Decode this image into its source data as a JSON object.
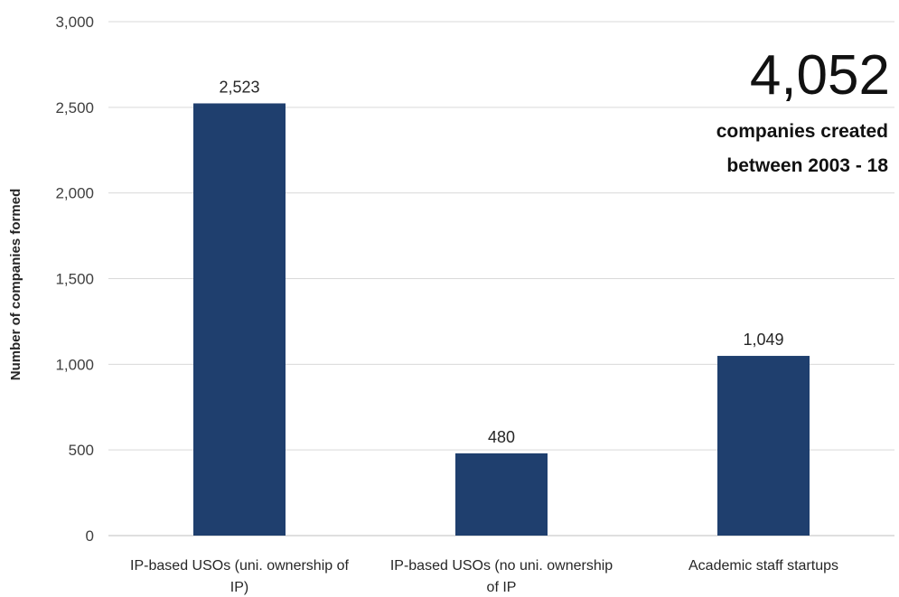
{
  "chart_data": {
    "type": "bar",
    "categories": [
      [
        "IP-based USOs (uni. ownership of",
        "IP)"
      ],
      [
        "IP-based USOs (no uni. ownership",
        "of IP"
      ],
      [
        "Academic staff startups"
      ]
    ],
    "values": [
      2523,
      480,
      1049
    ],
    "data_labels": [
      "2,523",
      "480",
      "1,049"
    ],
    "title": "",
    "xlabel": "",
    "ylabel": "Number of companies formed",
    "ylim": [
      0,
      3000
    ],
    "yticks": [
      0,
      500,
      1000,
      1500,
      2000,
      2500,
      3000
    ],
    "ytick_labels": [
      "0",
      "500",
      "1,000",
      "1,500",
      "2,000",
      "2,500",
      "3,000"
    ],
    "grid": true,
    "bar_color": "#1f3f6e",
    "annotation": {
      "number": "4,052",
      "lines": [
        "companies created",
        "between 2003 - 18"
      ]
    }
  }
}
